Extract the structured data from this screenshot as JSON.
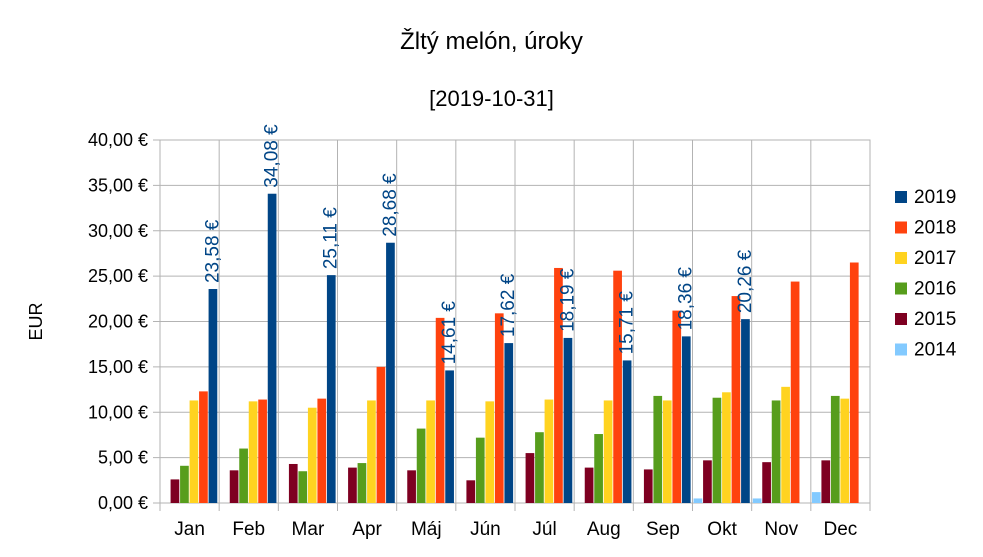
{
  "chart_data": {
    "type": "bar",
    "title": "Žltý melón, úroky",
    "subtitle": "[2019-10-31]",
    "xlabel": "",
    "ylabel": "EUR",
    "ylim": [
      0,
      40
    ],
    "yticks": [
      "0,00 €",
      "5,00 €",
      "10,00 €",
      "15,00 €",
      "20,00 €",
      "25,00 €",
      "30,00 €",
      "35,00 €",
      "40,00 €"
    ],
    "categories": [
      "Jan",
      "Feb",
      "Mar",
      "Apr",
      "Máj",
      "Jún",
      "Júl",
      "Aug",
      "Sep",
      "Okt",
      "Nov",
      "Dec"
    ],
    "grid": true,
    "legend_position": "right",
    "series": [
      {
        "name": "2014",
        "color": "#83caff",
        "values": [
          null,
          null,
          null,
          null,
          null,
          null,
          null,
          null,
          null,
          0.5,
          0.5,
          1.2
        ]
      },
      {
        "name": "2015",
        "color": "#7e0021",
        "values": [
          2.6,
          3.6,
          4.3,
          3.9,
          3.6,
          2.5,
          5.5,
          3.9,
          3.7,
          4.7,
          4.5,
          4.7
        ]
      },
      {
        "name": "2016",
        "color": "#579d1c",
        "values": [
          4.1,
          6.0,
          3.5,
          4.4,
          8.2,
          7.2,
          7.8,
          7.6,
          11.8,
          11.6,
          11.3,
          11.8
        ]
      },
      {
        "name": "2017",
        "color": "#ffd320",
        "values": [
          11.3,
          11.2,
          10.5,
          11.3,
          11.3,
          11.2,
          11.4,
          11.3,
          11.3,
          12.2,
          12.8,
          11.5
        ]
      },
      {
        "name": "2018",
        "color": "#ff420e",
        "values": [
          12.3,
          11.4,
          11.5,
          15.0,
          20.4,
          20.9,
          25.9,
          25.6,
          21.2,
          22.8,
          24.4,
          26.5
        ]
      },
      {
        "name": "2019",
        "color": "#004586",
        "values": [
          23.58,
          34.08,
          25.11,
          28.68,
          14.61,
          17.62,
          18.19,
          15.71,
          18.36,
          20.26,
          null,
          null
        ],
        "labels": [
          "23,58 €",
          "34,08 €",
          "25,11 €",
          "28,68 €",
          "14,61 €",
          "17,62 €",
          "18,19 €",
          "15,71 €",
          "18,36 €",
          "20,26 €",
          null,
          null
        ]
      }
    ],
    "legend_order": [
      "2019",
      "2018",
      "2017",
      "2016",
      "2015",
      "2014"
    ]
  }
}
